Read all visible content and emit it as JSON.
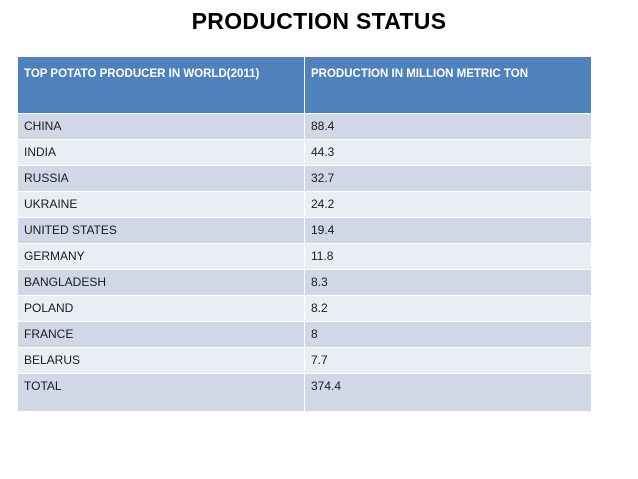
{
  "title": "PRODUCTION STATUS",
  "table": {
    "headers": [
      "TOP POTATO PRODUCER IN WORLD(2011)",
      "PRODUCTION IN MILLION METRIC TON"
    ],
    "rows": [
      [
        "CHINA",
        "88.4"
      ],
      [
        "INDIA",
        "44.3"
      ],
      [
        "RUSSIA",
        "32.7"
      ],
      [
        "UKRAINE",
        "24.2"
      ],
      [
        "UNITED STATES",
        "19.4"
      ],
      [
        "GERMANY",
        "11.8"
      ],
      [
        "BANGLADESH",
        "8.3"
      ],
      [
        "POLAND",
        "8.2"
      ],
      [
        "FRANCE",
        "8"
      ],
      [
        "BELARUS",
        "7.7"
      ],
      [
        "TOTAL",
        "374.4"
      ]
    ]
  },
  "colors": {
    "header_bg": "#4f81bd",
    "row_odd": "#d0d8e8",
    "row_even": "#e9edf4"
  }
}
